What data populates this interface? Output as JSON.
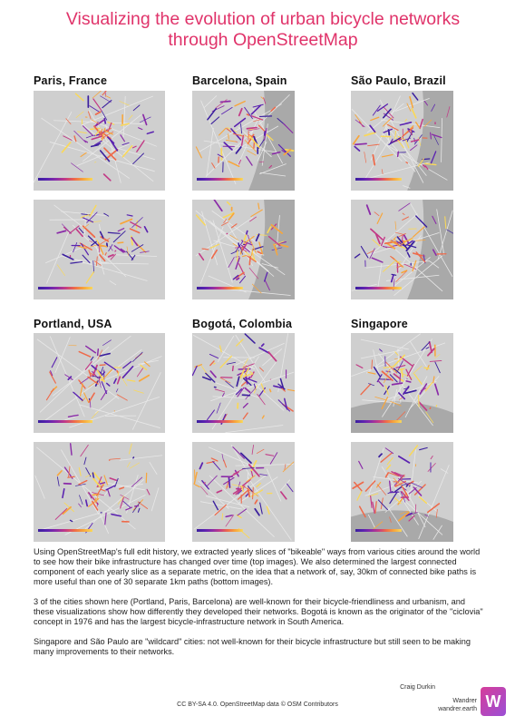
{
  "title": "Visualizing the evolution of urban bicycle networks through OpenStreetMap",
  "cities": [
    {
      "name": "Paris, France"
    },
    {
      "name": "Barcelona, Spain"
    },
    {
      "name": "São Paulo, Brazil"
    },
    {
      "name": "Portland, USA"
    },
    {
      "name": "Bogotá, Colombia"
    },
    {
      "name": "Singapore"
    }
  ],
  "paragraphs": [
    "Using OpenStreetMap's full edit history, we extracted yearly slices of \"bikeable\" ways from various cities around the world to see how their bike infrastructure has changed over time (top images). We also determined the largest connected component of each yearly slice as a separate metric, on the idea that a network of, say, 30km of connected bike paths is more useful than one of 30 separate 1km paths (bottom images).",
    "3 of the cities shown here (Portland, Paris, Barcelona) are well-known for their bicycle-friendliness and urbanism, and these visualizations show how differently they developed their networks. Bogotá is known as the originator of the \"ciclovia\" concept in 1976 and has the largest bicycle-infrastructure network in South America.",
    "Singapore and São Paulo are \"wildcard\" cities: not well-known for their bicycle infrastructure but still seen to be making many improvements to their networks."
  ],
  "author": "Craig Durkin",
  "brand": {
    "name": "Wandrer",
    "url": "wandrer.earth",
    "logo": "W"
  },
  "license": "CC BY-SA 4.0. OpenStreetMap data © OSM Contributors"
}
